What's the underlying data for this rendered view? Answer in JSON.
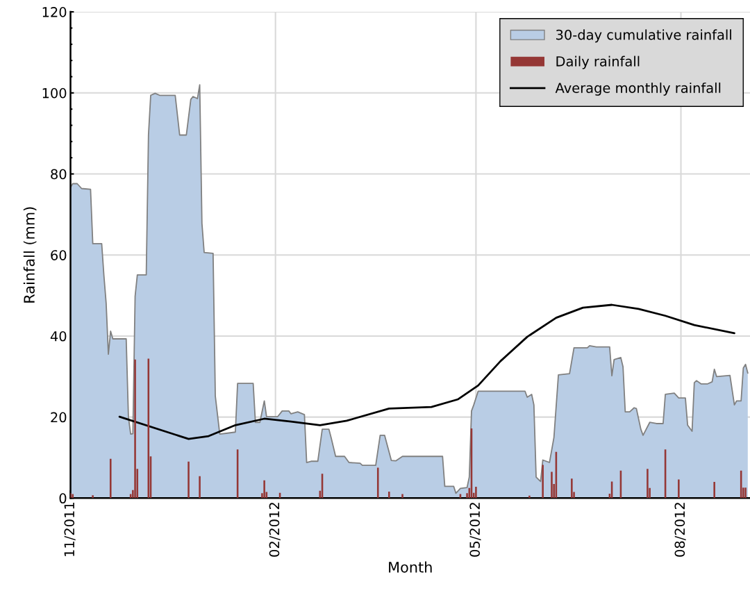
{
  "chart_data": {
    "type": "area",
    "xlabel": "Month",
    "ylabel": "Rainfall (mm)",
    "xlim": [
      "2011-11-01",
      "2012-09-01"
    ],
    "ylim": [
      0,
      120
    ],
    "yticks": [
      0,
      20,
      40,
      60,
      80,
      100,
      120
    ],
    "xticks": [
      {
        "value": "2011-11-01",
        "label": "11/2011"
      },
      {
        "value": "2011-12-01",
        "label": null
      },
      {
        "value": "2012-01-01",
        "label": null
      },
      {
        "value": "2012-02-01",
        "label": "02/2012"
      },
      {
        "value": "2012-03-01",
        "label": null
      },
      {
        "value": "2012-04-01",
        "label": null
      },
      {
        "value": "2012-05-01",
        "label": "05/2012"
      },
      {
        "value": "2012-06-01",
        "label": null
      },
      {
        "value": "2012-07-01",
        "label": null
      },
      {
        "value": "2012-08-01",
        "label": "08/2012"
      }
    ],
    "grid": true,
    "legend": "top right",
    "series": [
      {
        "name": "30-day cumulative rainfall",
        "color": "#b9cde5",
        "x": [
          "2011-11-01",
          "2011-11-02",
          "2011-11-04",
          "2011-11-06",
          "2011-11-10",
          "2011-11-11",
          "2011-11-15",
          "2011-11-16",
          "2011-11-17",
          "2011-11-18",
          "2011-11-19",
          "2011-11-20",
          "2011-11-26",
          "2011-11-27",
          "2011-11-28",
          "2011-11-29",
          "2011-11-30",
          "2011-12-01",
          "2011-12-05",
          "2011-12-06",
          "2011-12-07",
          "2011-12-09",
          "2011-12-11",
          "2011-12-18",
          "2011-12-20",
          "2011-12-23",
          "2011-12-25",
          "2011-12-26",
          "2011-12-28",
          "2011-12-29",
          "2011-12-30",
          "2011-12-31",
          "2012-01-04",
          "2012-01-05",
          "2012-01-07",
          "2012-01-10",
          "2012-01-14",
          "2012-01-15",
          "2012-01-22",
          "2012-01-23",
          "2012-01-25",
          "2012-01-27",
          "2012-01-28",
          "2012-02-02",
          "2012-02-04",
          "2012-02-07",
          "2012-02-08",
          "2012-02-11",
          "2012-02-14",
          "2012-02-15",
          "2012-02-17",
          "2012-02-20",
          "2012-02-22",
          "2012-02-25",
          "2012-02-26",
          "2012-02-28",
          "2012-03-03",
          "2012-03-05",
          "2012-03-10",
          "2012-03-11",
          "2012-03-17",
          "2012-03-19",
          "2012-03-21",
          "2012-03-24",
          "2012-03-26",
          "2012-03-29",
          "2012-04-16",
          "2012-04-17",
          "2012-04-21",
          "2012-04-22",
          "2012-04-24",
          "2012-04-27",
          "2012-04-28",
          "2012-04-29",
          "2012-04-30",
          "2012-05-02",
          "2012-05-23",
          "2012-05-24",
          "2012-05-26",
          "2012-05-27",
          "2012-05-28",
          "2012-05-30",
          "2012-05-31",
          "2012-06-03",
          "2012-06-05",
          "2012-06-07",
          "2012-06-12",
          "2012-06-14",
          "2012-06-20",
          "2012-06-21",
          "2012-06-24",
          "2012-06-30",
          "2012-07-01",
          "2012-07-02",
          "2012-07-05",
          "2012-07-06",
          "2012-07-07",
          "2012-07-09",
          "2012-07-11",
          "2012-07-12",
          "2012-07-14",
          "2012-07-15",
          "2012-07-18",
          "2012-07-21",
          "2012-07-24",
          "2012-07-25",
          "2012-07-29",
          "2012-07-31",
          "2012-08-03",
          "2012-08-04",
          "2012-08-06",
          "2012-08-07",
          "2012-08-08",
          "2012-08-10",
          "2012-08-13",
          "2012-08-15",
          "2012-08-16",
          "2012-08-17",
          "2012-08-23",
          "2012-08-25",
          "2012-08-26",
          "2012-08-28",
          "2012-08-29",
          "2012-08-30",
          "2012-08-31"
        ],
        "values": [
          76.7,
          77.6,
          77.6,
          76.4,
          76.2,
          62.8,
          62.8,
          54.9,
          48.1,
          35.5,
          41.2,
          39.3,
          39.3,
          20,
          15.8,
          15.9,
          49.8,
          55.1,
          55.1,
          89.6,
          99.4,
          99.9,
          99.4,
          99.4,
          89.6,
          89.6,
          98.4,
          99.1,
          98.6,
          102,
          67.8,
          60.6,
          60.4,
          25.2,
          15.8,
          16,
          16.3,
          28.3,
          28.3,
          18.7,
          18.7,
          24,
          20.1,
          20.1,
          21.5,
          21.5,
          20.8,
          21.3,
          20.6,
          8.8,
          9.1,
          9.1,
          17,
          17,
          14.9,
          10.3,
          10.3,
          8.8,
          8.6,
          8.1,
          8.1,
          15.5,
          15.5,
          9.3,
          9.2,
          10.3,
          10.3,
          2.9,
          2.9,
          1.2,
          2.4,
          2.6,
          5.2,
          21.5,
          23,
          26.4,
          26.4,
          24.9,
          25.6,
          23,
          5.2,
          4.1,
          9.4,
          8.8,
          15,
          30.4,
          30.7,
          37.1,
          37.1,
          37.6,
          37.3,
          37.3,
          30.2,
          34.2,
          34.7,
          32.4,
          21.3,
          21.3,
          22.3,
          22.1,
          17,
          15.5,
          18.7,
          18.4,
          18.4,
          25.6,
          25.9,
          24.7,
          24.7,
          18,
          16.5,
          28.5,
          29,
          28.2,
          28.2,
          28.7,
          31.8,
          30,
          30.3,
          23,
          24,
          24,
          32.1,
          33,
          30.9
        ]
      },
      {
        "name": "Daily rainfall",
        "type": "bar",
        "color": "#953735",
        "x": [
          "2011-11-01",
          "2011-11-02",
          "2011-11-11",
          "2011-11-19",
          "2011-11-28",
          "2011-11-29",
          "2011-11-30",
          "2011-12-01",
          "2011-12-06",
          "2011-12-07",
          "2011-12-24",
          "2011-12-29",
          "2012-01-15",
          "2012-01-26",
          "2012-01-27",
          "2012-01-28",
          "2012-02-03",
          "2012-02-21",
          "2012-02-22",
          "2012-03-18",
          "2012-03-23",
          "2012-03-29",
          "2012-04-24",
          "2012-04-27",
          "2012-04-28",
          "2012-04-29",
          "2012-04-30",
          "2012-05-01",
          "2012-05-25",
          "2012-05-31",
          "2012-06-04",
          "2012-06-05",
          "2012-06-06",
          "2012-06-13",
          "2012-06-14",
          "2012-06-30",
          "2012-07-01",
          "2012-07-05",
          "2012-07-17",
          "2012-07-18",
          "2012-07-25",
          "2012-07-31",
          "2012-08-16",
          "2012-08-28",
          "2012-08-29",
          "2012-08-30"
        ],
        "values": [
          1.2,
          1,
          0.7,
          9.7,
          1,
          2,
          34.2,
          7.2,
          34.4,
          10.3,
          9,
          5.4,
          12,
          1.2,
          4.4,
          1.5,
          1.3,
          1.8,
          6,
          7.5,
          1.6,
          1,
          1,
          1.2,
          2.5,
          17.2,
          1.3,
          2.8,
          0.6,
          8.2,
          6.5,
          3.5,
          11.4,
          4.8,
          1.5,
          1.1,
          4.1,
          6.8,
          7.2,
          2.5,
          12,
          4.6,
          4,
          6.8,
          2.6,
          2.6
        ]
      },
      {
        "name": "Average monthly rainfall",
        "type": "line",
        "color": "#000000",
        "x": [
          "2011-11-23",
          "2011-12-24",
          "2012-01-02",
          "2012-01-14",
          "2012-01-27",
          "2012-02-08",
          "2012-02-21",
          "2012-03-04",
          "2012-03-23",
          "2012-04-11",
          "2012-04-23",
          "2012-05-02",
          "2012-05-12",
          "2012-05-24",
          "2012-06-06",
          "2012-06-18",
          "2012-07-01",
          "2012-07-13",
          "2012-07-25",
          "2012-08-07",
          "2012-08-25"
        ],
        "values": [
          20.1,
          14.6,
          15.3,
          18,
          19.6,
          18.9,
          18,
          19.1,
          22.1,
          22.5,
          24.4,
          27.8,
          33.8,
          39.8,
          44.5,
          47,
          47.7,
          46.7,
          45,
          42.7,
          40.7
        ]
      }
    ]
  }
}
